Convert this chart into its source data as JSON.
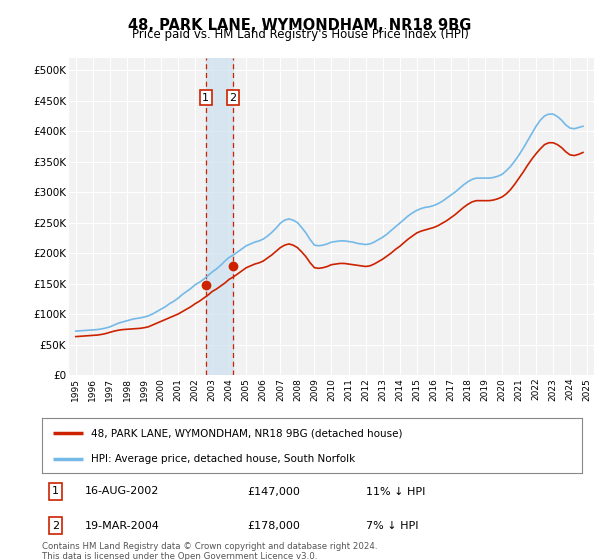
{
  "title": "48, PARK LANE, WYMONDHAM, NR18 9BG",
  "subtitle": "Price paid vs. HM Land Registry's House Price Index (HPI)",
  "ylim": [
    0,
    520000
  ],
  "yticks": [
    0,
    50000,
    100000,
    150000,
    200000,
    250000,
    300000,
    350000,
    400000,
    450000,
    500000
  ],
  "background_color": "#ffffff",
  "plot_bg_color": "#f2f2f2",
  "grid_color": "#ffffff",
  "legend_entry1": "48, PARK LANE, WYMONDHAM, NR18 9BG (detached house)",
  "legend_entry2": "HPI: Average price, detached house, South Norfolk",
  "purchase1_label": "1",
  "purchase1_date": "16-AUG-2002",
  "purchase1_price": "£147,000",
  "purchase1_note": "11% ↓ HPI",
  "purchase2_label": "2",
  "purchase2_date": "19-MAR-2004",
  "purchase2_price": "£178,000",
  "purchase2_note": "7% ↓ HPI",
  "footer": "Contains HM Land Registry data © Crown copyright and database right 2024.\nThis data is licensed under the Open Government Licence v3.0.",
  "hpi_color": "#74b9e8",
  "price_color": "#cc2200",
  "purchase1_x": 2002.62,
  "purchase1_y": 147000,
  "purchase2_x": 2004.21,
  "purchase2_y": 178000,
  "vline1_x": 2002.62,
  "vline2_x": 2004.21,
  "shade_xmin": 2002.62,
  "shade_xmax": 2004.21,
  "hpi_years": [
    1995.0,
    1995.25,
    1995.5,
    1995.75,
    1996.0,
    1996.25,
    1996.5,
    1996.75,
    1997.0,
    1997.25,
    1997.5,
    1997.75,
    1998.0,
    1998.25,
    1998.5,
    1998.75,
    1999.0,
    1999.25,
    1999.5,
    1999.75,
    2000.0,
    2000.25,
    2000.5,
    2000.75,
    2001.0,
    2001.25,
    2001.5,
    2001.75,
    2002.0,
    2002.25,
    2002.5,
    2002.75,
    2003.0,
    2003.25,
    2003.5,
    2003.75,
    2004.0,
    2004.25,
    2004.5,
    2004.75,
    2005.0,
    2005.25,
    2005.5,
    2005.75,
    2006.0,
    2006.25,
    2006.5,
    2006.75,
    2007.0,
    2007.25,
    2007.5,
    2007.75,
    2008.0,
    2008.25,
    2008.5,
    2008.75,
    2009.0,
    2009.25,
    2009.5,
    2009.75,
    2010.0,
    2010.25,
    2010.5,
    2010.75,
    2011.0,
    2011.25,
    2011.5,
    2011.75,
    2012.0,
    2012.25,
    2012.5,
    2012.75,
    2013.0,
    2013.25,
    2013.5,
    2013.75,
    2014.0,
    2014.25,
    2014.5,
    2014.75,
    2015.0,
    2015.25,
    2015.5,
    2015.75,
    2016.0,
    2016.25,
    2016.5,
    2016.75,
    2017.0,
    2017.25,
    2017.5,
    2017.75,
    2018.0,
    2018.25,
    2018.5,
    2018.75,
    2019.0,
    2019.25,
    2019.5,
    2019.75,
    2020.0,
    2020.25,
    2020.5,
    2020.75,
    2021.0,
    2021.25,
    2021.5,
    2021.75,
    2022.0,
    2022.25,
    2022.5,
    2022.75,
    2023.0,
    2023.25,
    2023.5,
    2023.75,
    2024.0,
    2024.25,
    2024.5,
    2024.75
  ],
  "hpi_values": [
    72000,
    72500,
    73000,
    73500,
    74000,
    74500,
    75500,
    77000,
    79000,
    82000,
    85000,
    87000,
    89000,
    91000,
    92500,
    93500,
    95000,
    97000,
    100000,
    104000,
    108000,
    112000,
    117000,
    121000,
    126000,
    132000,
    137000,
    142000,
    148000,
    152000,
    157000,
    163000,
    169000,
    174000,
    180000,
    187000,
    193000,
    197000,
    202000,
    207000,
    212000,
    215000,
    218000,
    220000,
    223000,
    228000,
    234000,
    241000,
    249000,
    254000,
    256000,
    254000,
    250000,
    242000,
    233000,
    222000,
    213000,
    212000,
    213000,
    215000,
    218000,
    219000,
    220000,
    220000,
    219000,
    218000,
    216000,
    215000,
    214000,
    215000,
    218000,
    222000,
    226000,
    231000,
    237000,
    243000,
    249000,
    255000,
    261000,
    266000,
    270000,
    273000,
    275000,
    276000,
    278000,
    281000,
    285000,
    290000,
    295000,
    300000,
    306000,
    312000,
    317000,
    321000,
    323000,
    323000,
    323000,
    323000,
    324000,
    326000,
    329000,
    335000,
    342000,
    351000,
    361000,
    372000,
    384000,
    396000,
    408000,
    418000,
    425000,
    428000,
    428000,
    424000,
    418000,
    410000,
    405000,
    404000,
    406000,
    408000
  ],
  "price_years": [
    1995.0,
    1995.25,
    1995.5,
    1995.75,
    1996.0,
    1996.25,
    1996.5,
    1996.75,
    1997.0,
    1997.25,
    1997.5,
    1997.75,
    1998.0,
    1998.25,
    1998.5,
    1998.75,
    1999.0,
    1999.25,
    1999.5,
    1999.75,
    2000.0,
    2000.25,
    2000.5,
    2000.75,
    2001.0,
    2001.25,
    2001.5,
    2001.75,
    2002.0,
    2002.25,
    2002.5,
    2002.75,
    2003.0,
    2003.25,
    2003.5,
    2003.75,
    2004.0,
    2004.25,
    2004.5,
    2004.75,
    2005.0,
    2005.25,
    2005.5,
    2005.75,
    2006.0,
    2006.25,
    2006.5,
    2006.75,
    2007.0,
    2007.25,
    2007.5,
    2007.75,
    2008.0,
    2008.25,
    2008.5,
    2008.75,
    2009.0,
    2009.25,
    2009.5,
    2009.75,
    2010.0,
    2010.25,
    2010.5,
    2010.75,
    2011.0,
    2011.25,
    2011.5,
    2011.75,
    2012.0,
    2012.25,
    2012.5,
    2012.75,
    2013.0,
    2013.25,
    2013.5,
    2013.75,
    2014.0,
    2014.25,
    2014.5,
    2014.75,
    2015.0,
    2015.25,
    2015.5,
    2015.75,
    2016.0,
    2016.25,
    2016.5,
    2016.75,
    2017.0,
    2017.25,
    2017.5,
    2017.75,
    2018.0,
    2018.25,
    2018.5,
    2018.75,
    2019.0,
    2019.25,
    2019.5,
    2019.75,
    2020.0,
    2020.25,
    2020.5,
    2020.75,
    2021.0,
    2021.25,
    2021.5,
    2021.75,
    2022.0,
    2022.25,
    2022.5,
    2022.75,
    2023.0,
    2023.25,
    2023.5,
    2023.75,
    2024.0,
    2024.25,
    2024.5,
    2024.75
  ],
  "price_values": [
    63000,
    63500,
    64000,
    64500,
    65000,
    65500,
    66500,
    68000,
    70000,
    72000,
    73500,
    74500,
    75000,
    75500,
    76000,
    76500,
    77500,
    79000,
    82000,
    85000,
    88000,
    91000,
    94000,
    97000,
    100000,
    104000,
    108000,
    112000,
    117000,
    121000,
    126000,
    131000,
    137000,
    141000,
    146000,
    151000,
    157000,
    161000,
    166000,
    171000,
    176000,
    179000,
    182000,
    184000,
    187000,
    192000,
    197000,
    203000,
    209000,
    213000,
    215000,
    213000,
    209000,
    202000,
    194000,
    184000,
    176000,
    175000,
    176000,
    178000,
    181000,
    182000,
    183000,
    183000,
    182000,
    181000,
    180000,
    179000,
    178000,
    179000,
    182000,
    186000,
    190000,
    195000,
    200000,
    206000,
    211000,
    217000,
    223000,
    228000,
    233000,
    236000,
    238000,
    240000,
    242000,
    245000,
    249000,
    253000,
    258000,
    263000,
    269000,
    275000,
    280000,
    284000,
    286000,
    286000,
    286000,
    286000,
    287000,
    289000,
    292000,
    297000,
    304000,
    313000,
    323000,
    333000,
    344000,
    354000,
    363000,
    371000,
    378000,
    381000,
    381000,
    378000,
    373000,
    366000,
    361000,
    360000,
    362000,
    365000
  ],
  "xlim_left": 1994.6,
  "xlim_right": 2025.4,
  "xticks": [
    1995,
    1996,
    1997,
    1998,
    1999,
    2000,
    2001,
    2002,
    2003,
    2004,
    2005,
    2006,
    2007,
    2008,
    2009,
    2010,
    2011,
    2012,
    2013,
    2014,
    2015,
    2016,
    2017,
    2018,
    2019,
    2020,
    2021,
    2022,
    2023,
    2024,
    2025
  ]
}
